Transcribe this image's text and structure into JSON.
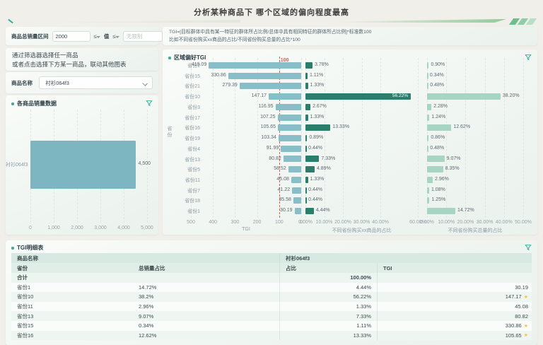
{
  "page": {
    "title": "分析某种商品下 哪个区域的偏向程度最高"
  },
  "filter_bar": {
    "label": "商品总销量区间",
    "min_value": "2000",
    "op1": "≤",
    "value_word": "值",
    "op2": "≤",
    "max_placeholder": "无限制"
  },
  "tgi_note": {
    "line1": "TGI=[目标群体中具有某一特征的群体所占比例/总体中具有相同特征的群体所占比例]*标准数100",
    "line2": "比如不同省份购买xx商品的占比/不同省份购买总量的占比*100"
  },
  "selector_panel": {
    "hint_line1": "通过筛选器选择任一商品",
    "hint_line2": "或者点击选择下方某一商品，联动其他图表",
    "product_label": "商品名称",
    "product_value": "衬衫064f3"
  },
  "colors": {
    "accent": "#2aa797",
    "sales_bar": "#7db6c1",
    "tgi_bar": "#87bec8",
    "share_bar": "#2b7e6c",
    "total_share_bar": "#a8d4c3",
    "reference": "#e05a4e",
    "star": "#f0c24b",
    "slash1": "#6fbe8f",
    "slash2": "#8fcda8",
    "slash3": "#b7dfc6"
  },
  "chart_data": [
    {
      "type": "bar",
      "orientation": "horizontal",
      "title": "各商品销量数据",
      "categories": [
        "衬衫064f3"
      ],
      "values": [
        4500
      ],
      "value_labels": [
        "4,500"
      ],
      "xlim": [
        0,
        5000
      ],
      "x_ticks": [
        {
          "label": "0",
          "value": 0
        },
        {
          "label": "1,000",
          "value": 1000
        },
        {
          "label": "2,000",
          "value": 2000
        },
        {
          "label": "3,000",
          "value": 3000
        },
        {
          "label": "4,000",
          "value": 4000
        },
        {
          "label": "5,000",
          "value": 5000
        }
      ]
    },
    {
      "type": "bar",
      "orientation": "horizontal",
      "title": "区域偏好TGI",
      "ylabel": "省份",
      "categories": [
        "省份2",
        "省份15",
        "省份21",
        "省份10",
        "省份3",
        "省份17",
        "省份16",
        "省份19",
        "省份4",
        "省份13",
        "省份5",
        "省份11",
        "省份7",
        "省份18",
        "省份1"
      ],
      "series": [
        {
          "name": "TGI",
          "axis_reversed": true,
          "max": 500,
          "ticks": [
            {
              "label": "500",
              "value": 500
            },
            {
              "label": "400",
              "value": 400
            },
            {
              "label": "300",
              "value": 300
            },
            {
              "label": "200",
              "value": 200
            },
            {
              "label": "100",
              "value": 100
            },
            {
              "label": "0",
              "value": 0
            }
          ],
          "reference_line": {
            "value": 100,
            "label": "100"
          },
          "values": [
            419.09,
            330.86,
            279.39,
            147.17,
            116.95,
            107.25,
            105.65,
            103.34,
            91.99,
            80.82,
            58.52,
            45.08,
            41.22,
            35.58,
            30.19
          ],
          "labels": [
            "419.09",
            "330.86",
            "279.39",
            "147.17",
            "116.95",
            "107.25",
            "105.65",
            "103.34",
            "91.99",
            "80.82",
            "58.52",
            "45.08",
            "41.22",
            "35.58",
            "30.19"
          ]
        },
        {
          "name": "不同省份购买xx商品的占比",
          "max": 60,
          "ticks": [
            {
              "label": "0.00%",
              "value": 0
            },
            {
              "label": "10.00%",
              "value": 10
            },
            {
              "label": "20.00%",
              "value": 20
            },
            {
              "label": "30.00%",
              "value": 30
            },
            {
              "label": "40.00%",
              "value": 40
            },
            {
              "label": "60.00%",
              "value": 60
            }
          ],
          "values": [
            3.78,
            1.11,
            1.33,
            56.22,
            2.67,
            1.33,
            13.33,
            0.89,
            0.44,
            7.33,
            4.89,
            1.33,
            0.44,
            0.44,
            4.44
          ],
          "labels": [
            "3.78%",
            "1.11%",
            "1.33%",
            "56.22%",
            "2.67%",
            "1.33%",
            "13.33%",
            "0.89%",
            "0.44%",
            "7.33%",
            "4.89%",
            "1.33%",
            "0.44%",
            "0.44%",
            "4.44%"
          ]
        },
        {
          "name": "不同省份购买总量的占比",
          "max": 50,
          "ticks": [
            {
              "label": "0.00%",
              "value": 0
            },
            {
              "label": "10.00%",
              "value": 10
            },
            {
              "label": "20.00%",
              "value": 20
            },
            {
              "label": "30.00%",
              "value": 30
            },
            {
              "label": "40.00%",
              "value": 40
            },
            {
              "label": "50.00%",
              "value": 50
            }
          ],
          "values": [
            0.9,
            0.34,
            0.48,
            38.2,
            2.28,
            1.24,
            12.62,
            0.86,
            0.48,
            9.07,
            8.35,
            2.96,
            1.08,
            1.25,
            14.72
          ],
          "labels": [
            "0.90%",
            "0.34%",
            "0.48%",
            "38.20%",
            "2.28%",
            "1.24%",
            "12.62%",
            "0.86%",
            "0.48%",
            "9.07%",
            "8.35%",
            "2.96%",
            "1.08%",
            "1.25%",
            "14.72%"
          ]
        }
      ]
    }
  ],
  "table": {
    "title": "TGI明细表",
    "product_header": "商品名称",
    "product_value": "衬衫064f3",
    "columns": [
      "省份",
      "总销量占比",
      "占比",
      "TGI"
    ],
    "total_row": {
      "label": "合计",
      "share": "100.00%"
    },
    "rows": [
      {
        "province": "省份1",
        "sales_share": "14.72%",
        "share": "4.44%",
        "tgi": "30.19",
        "star": false
      },
      {
        "province": "省份10",
        "sales_share": "38.2%",
        "share": "56.22%",
        "tgi": "147.17",
        "star": true
      },
      {
        "province": "省份11",
        "sales_share": "2.96%",
        "share": "1.33%",
        "tgi": "45.08",
        "star": false
      },
      {
        "province": "省份13",
        "sales_share": "9.07%",
        "share": "7.33%",
        "tgi": "80.82",
        "star": false
      },
      {
        "province": "省份15",
        "sales_share": "0.34%",
        "share": "1.11%",
        "tgi": "330.86",
        "star": true
      },
      {
        "province": "省份16",
        "sales_share": "12.62%",
        "share": "13.33%",
        "tgi": "105.65",
        "star": true
      }
    ]
  },
  "icons": {
    "filter": "funnel",
    "star_glyph": "★"
  }
}
